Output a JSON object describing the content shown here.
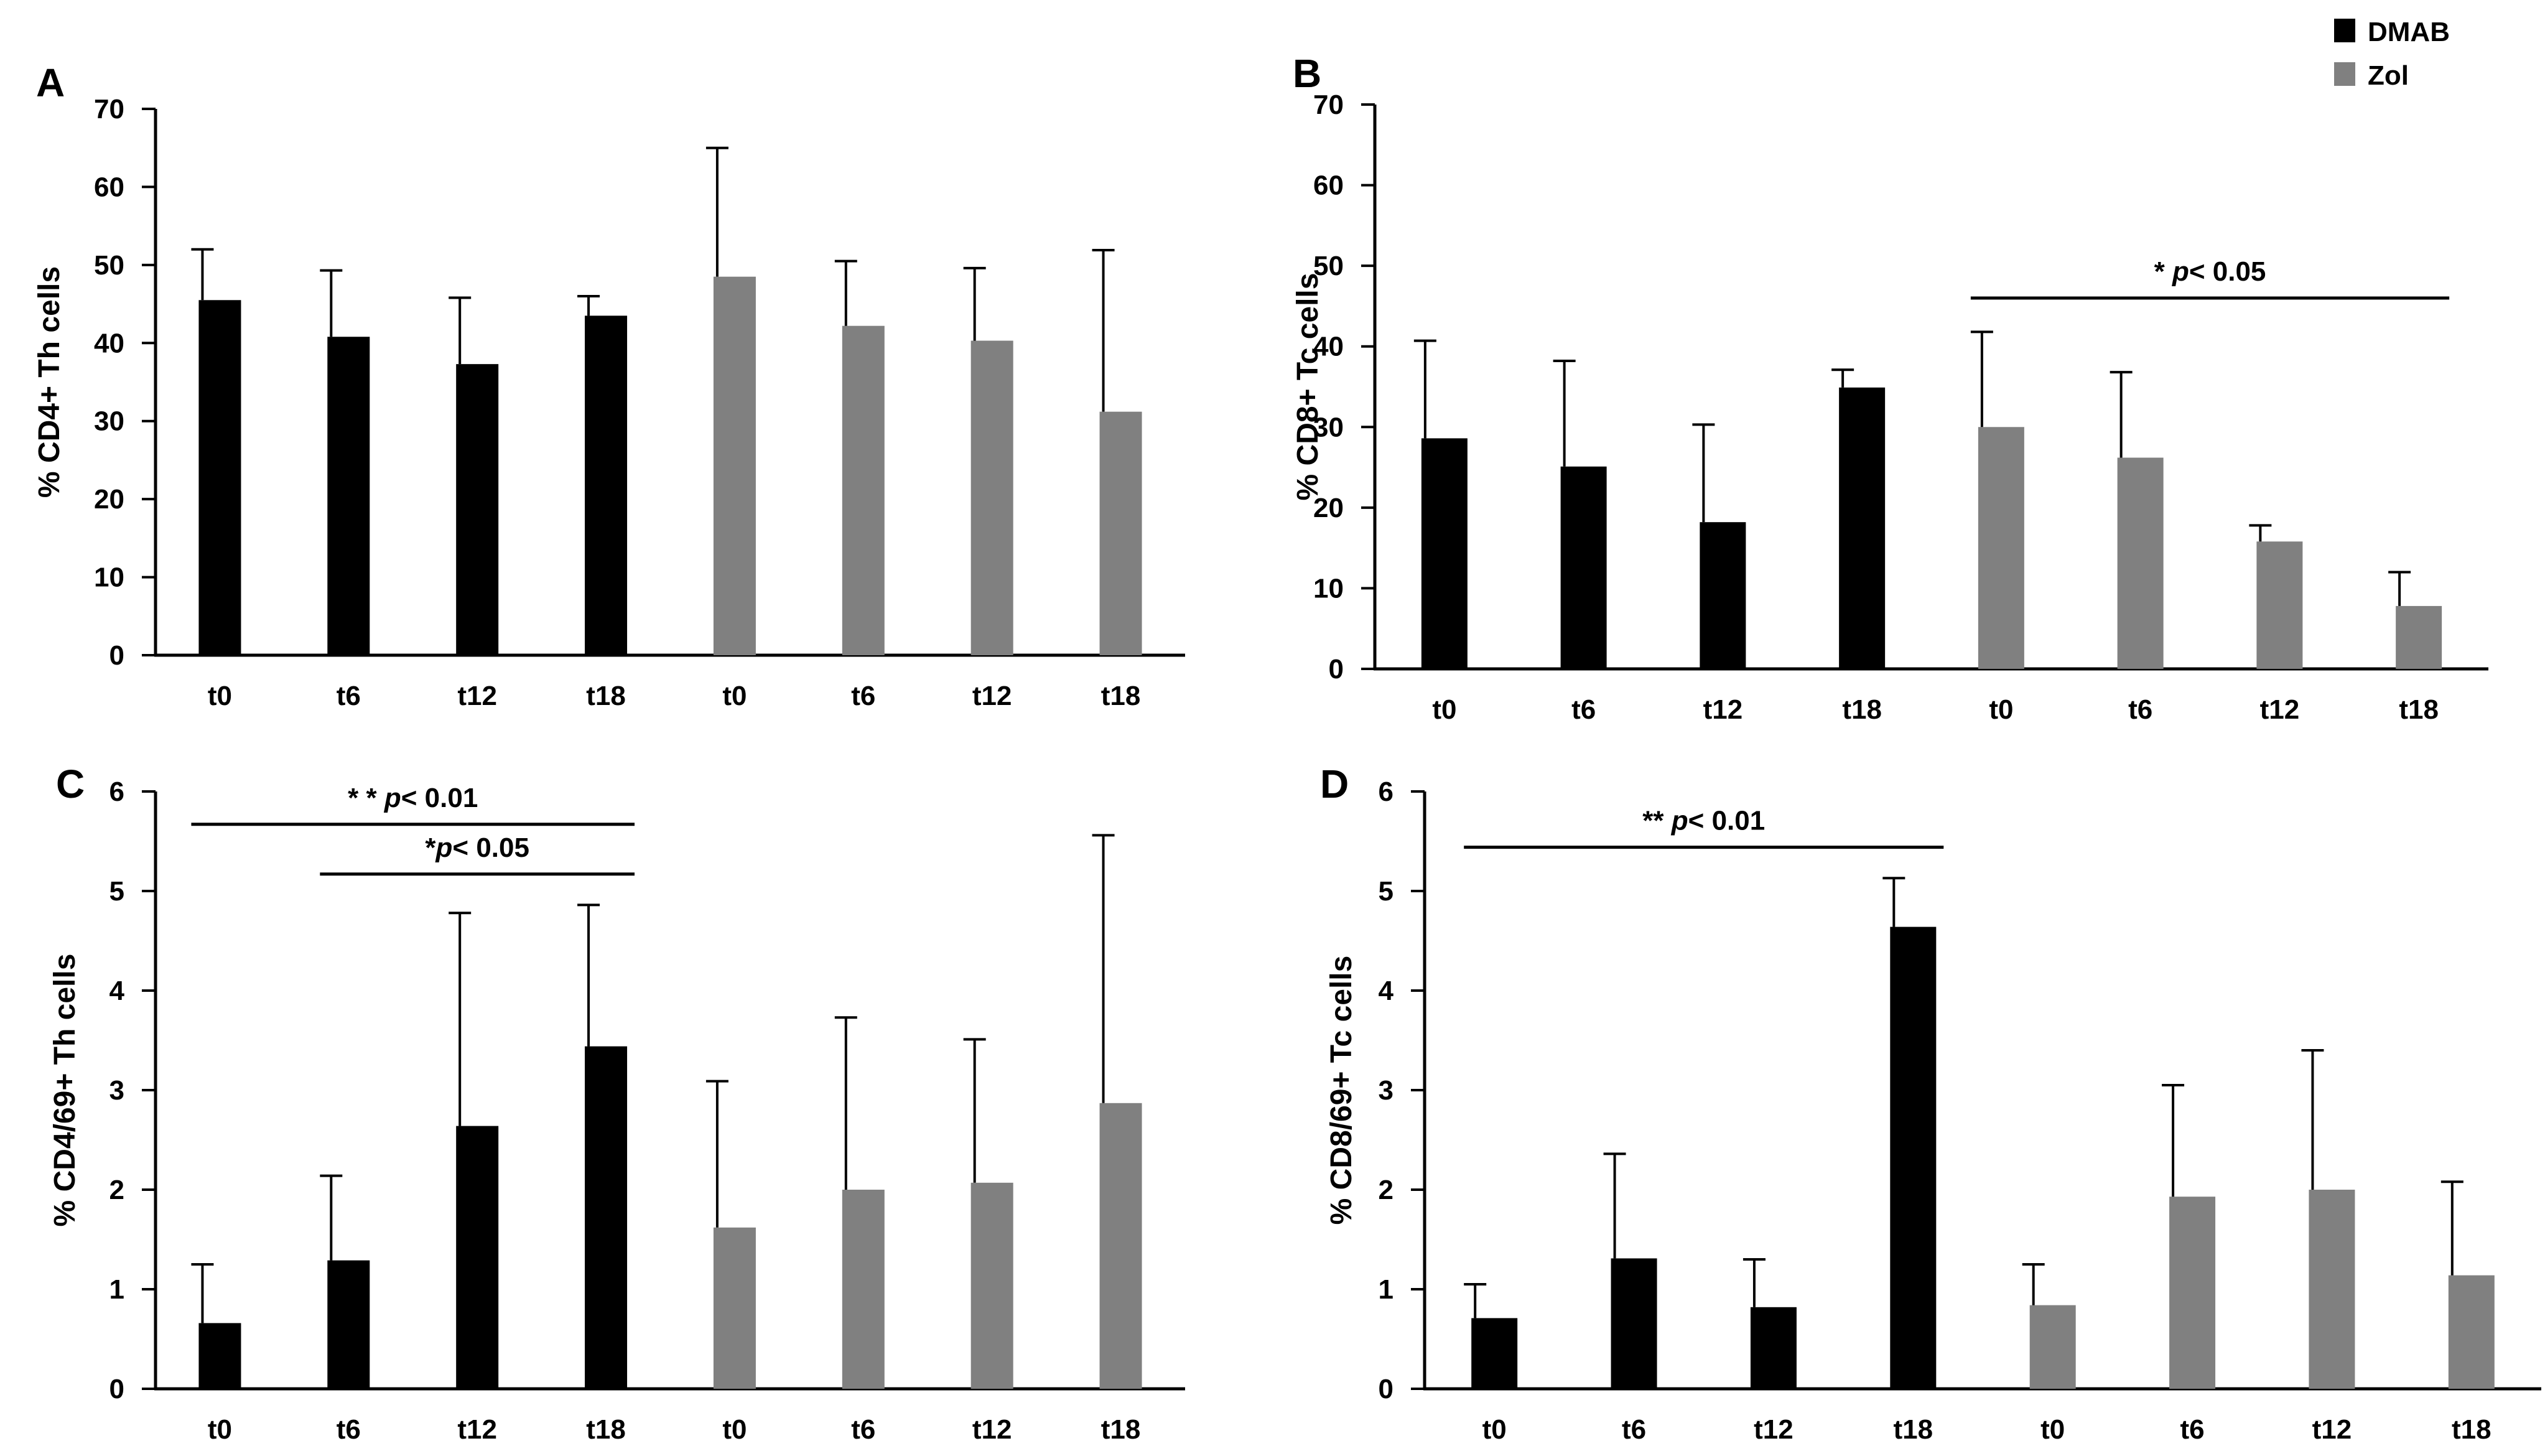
{
  "legend": [
    {
      "name": "DMAB",
      "color": "#000000"
    },
    {
      "name": "Zol",
      "color": "#808080"
    }
  ],
  "colors": {
    "DMAB": "#000000",
    "Zol": "#808080",
    "axis": "#000000"
  },
  "chart_data": [
    {
      "panel": "A",
      "type": "bar",
      "categories": [
        "t0",
        "t6",
        "t12",
        "t18",
        "t0",
        "t6",
        "t12",
        "t18"
      ],
      "groups": [
        "DMAB",
        "DMAB",
        "DMAB",
        "DMAB",
        "Zol",
        "Zol",
        "Zol",
        "Zol"
      ],
      "values": [
        45.5,
        40.8,
        37.3,
        43.5,
        48.5,
        42.2,
        40.3,
        31.2
      ],
      "errors": [
        6.5,
        8.5,
        8.5,
        2.5,
        16.5,
        8.3,
        9.3,
        20.7
      ],
      "ylabel": "% CD4+ Th cells",
      "ylim": [
        0,
        70
      ],
      "yticks": [
        0,
        10,
        20,
        30,
        40,
        50,
        60,
        70
      ],
      "annotations": []
    },
    {
      "panel": "B",
      "type": "bar",
      "categories": [
        "t0",
        "t6",
        "t12",
        "t18",
        "t0",
        "t6",
        "t12",
        "t18"
      ],
      "groups": [
        "DMAB",
        "DMAB",
        "DMAB",
        "DMAB",
        "Zol",
        "Zol",
        "Zol",
        "Zol"
      ],
      "values": [
        28.6,
        25.1,
        18.2,
        34.9,
        30.0,
        26.2,
        15.8,
        7.8
      ],
      "errors": [
        12.1,
        13.1,
        12.1,
        2.2,
        11.8,
        10.6,
        2.0,
        4.2
      ],
      "ylabel": "% CD8+ Tc cells",
      "ylim": [
        0,
        70
      ],
      "yticks": [
        0,
        10,
        20,
        30,
        40,
        50,
        60,
        70
      ],
      "annotations": [
        {
          "from": 4,
          "to": 7,
          "level": 46,
          "star": "* ",
          "p": "p",
          "rest": "< 0.05"
        }
      ]
    },
    {
      "panel": "C",
      "type": "bar",
      "categories": [
        "t0",
        "t6",
        "t12",
        "t18",
        "t0",
        "t6",
        "t12",
        "t18"
      ],
      "groups": [
        "DMAB",
        "DMAB",
        "DMAB",
        "DMAB",
        "Zol",
        "Zol",
        "Zol",
        "Zol"
      ],
      "values": [
        0.66,
        1.29,
        2.64,
        3.44,
        1.62,
        2.0,
        2.07,
        2.87
      ],
      "errors": [
        0.59,
        0.85,
        2.14,
        1.42,
        1.47,
        1.73,
        1.44,
        2.69
      ],
      "ylabel": "% CD4/69+ Th cells",
      "ylim": [
        0,
        6
      ],
      "yticks": [
        0,
        1,
        2,
        3,
        4,
        5,
        6
      ],
      "annotations": [
        {
          "from": 0,
          "to": 3,
          "level": 5.67,
          "star": "* * ",
          "p": "p",
          "rest": "< 0.01"
        },
        {
          "from": 1,
          "to": 3,
          "level": 5.17,
          "star": "*",
          "p": "p",
          "rest": "< 0.05"
        }
      ]
    },
    {
      "panel": "D",
      "type": "bar",
      "categories": [
        "t0",
        "t6",
        "t12",
        "t18",
        "t0",
        "t6",
        "t12",
        "t18"
      ],
      "groups": [
        "DMAB",
        "DMAB",
        "DMAB",
        "DMAB",
        "Zol",
        "Zol",
        "Zol",
        "Zol"
      ],
      "values": [
        0.71,
        1.31,
        0.82,
        4.64,
        0.84,
        1.93,
        2.0,
        1.14
      ],
      "errors": [
        0.34,
        1.05,
        0.48,
        0.49,
        0.41,
        1.12,
        1.4,
        0.94
      ],
      "ylabel": "% CD8/69+ Tc cells",
      "ylim": [
        0,
        6
      ],
      "yticks": [
        0,
        1,
        2,
        3,
        4,
        5,
        6
      ],
      "annotations": [
        {
          "from": 0,
          "to": 3,
          "level": 5.44,
          "star": "** ",
          "p": "p",
          "rest": "< 0.01"
        }
      ]
    }
  ]
}
